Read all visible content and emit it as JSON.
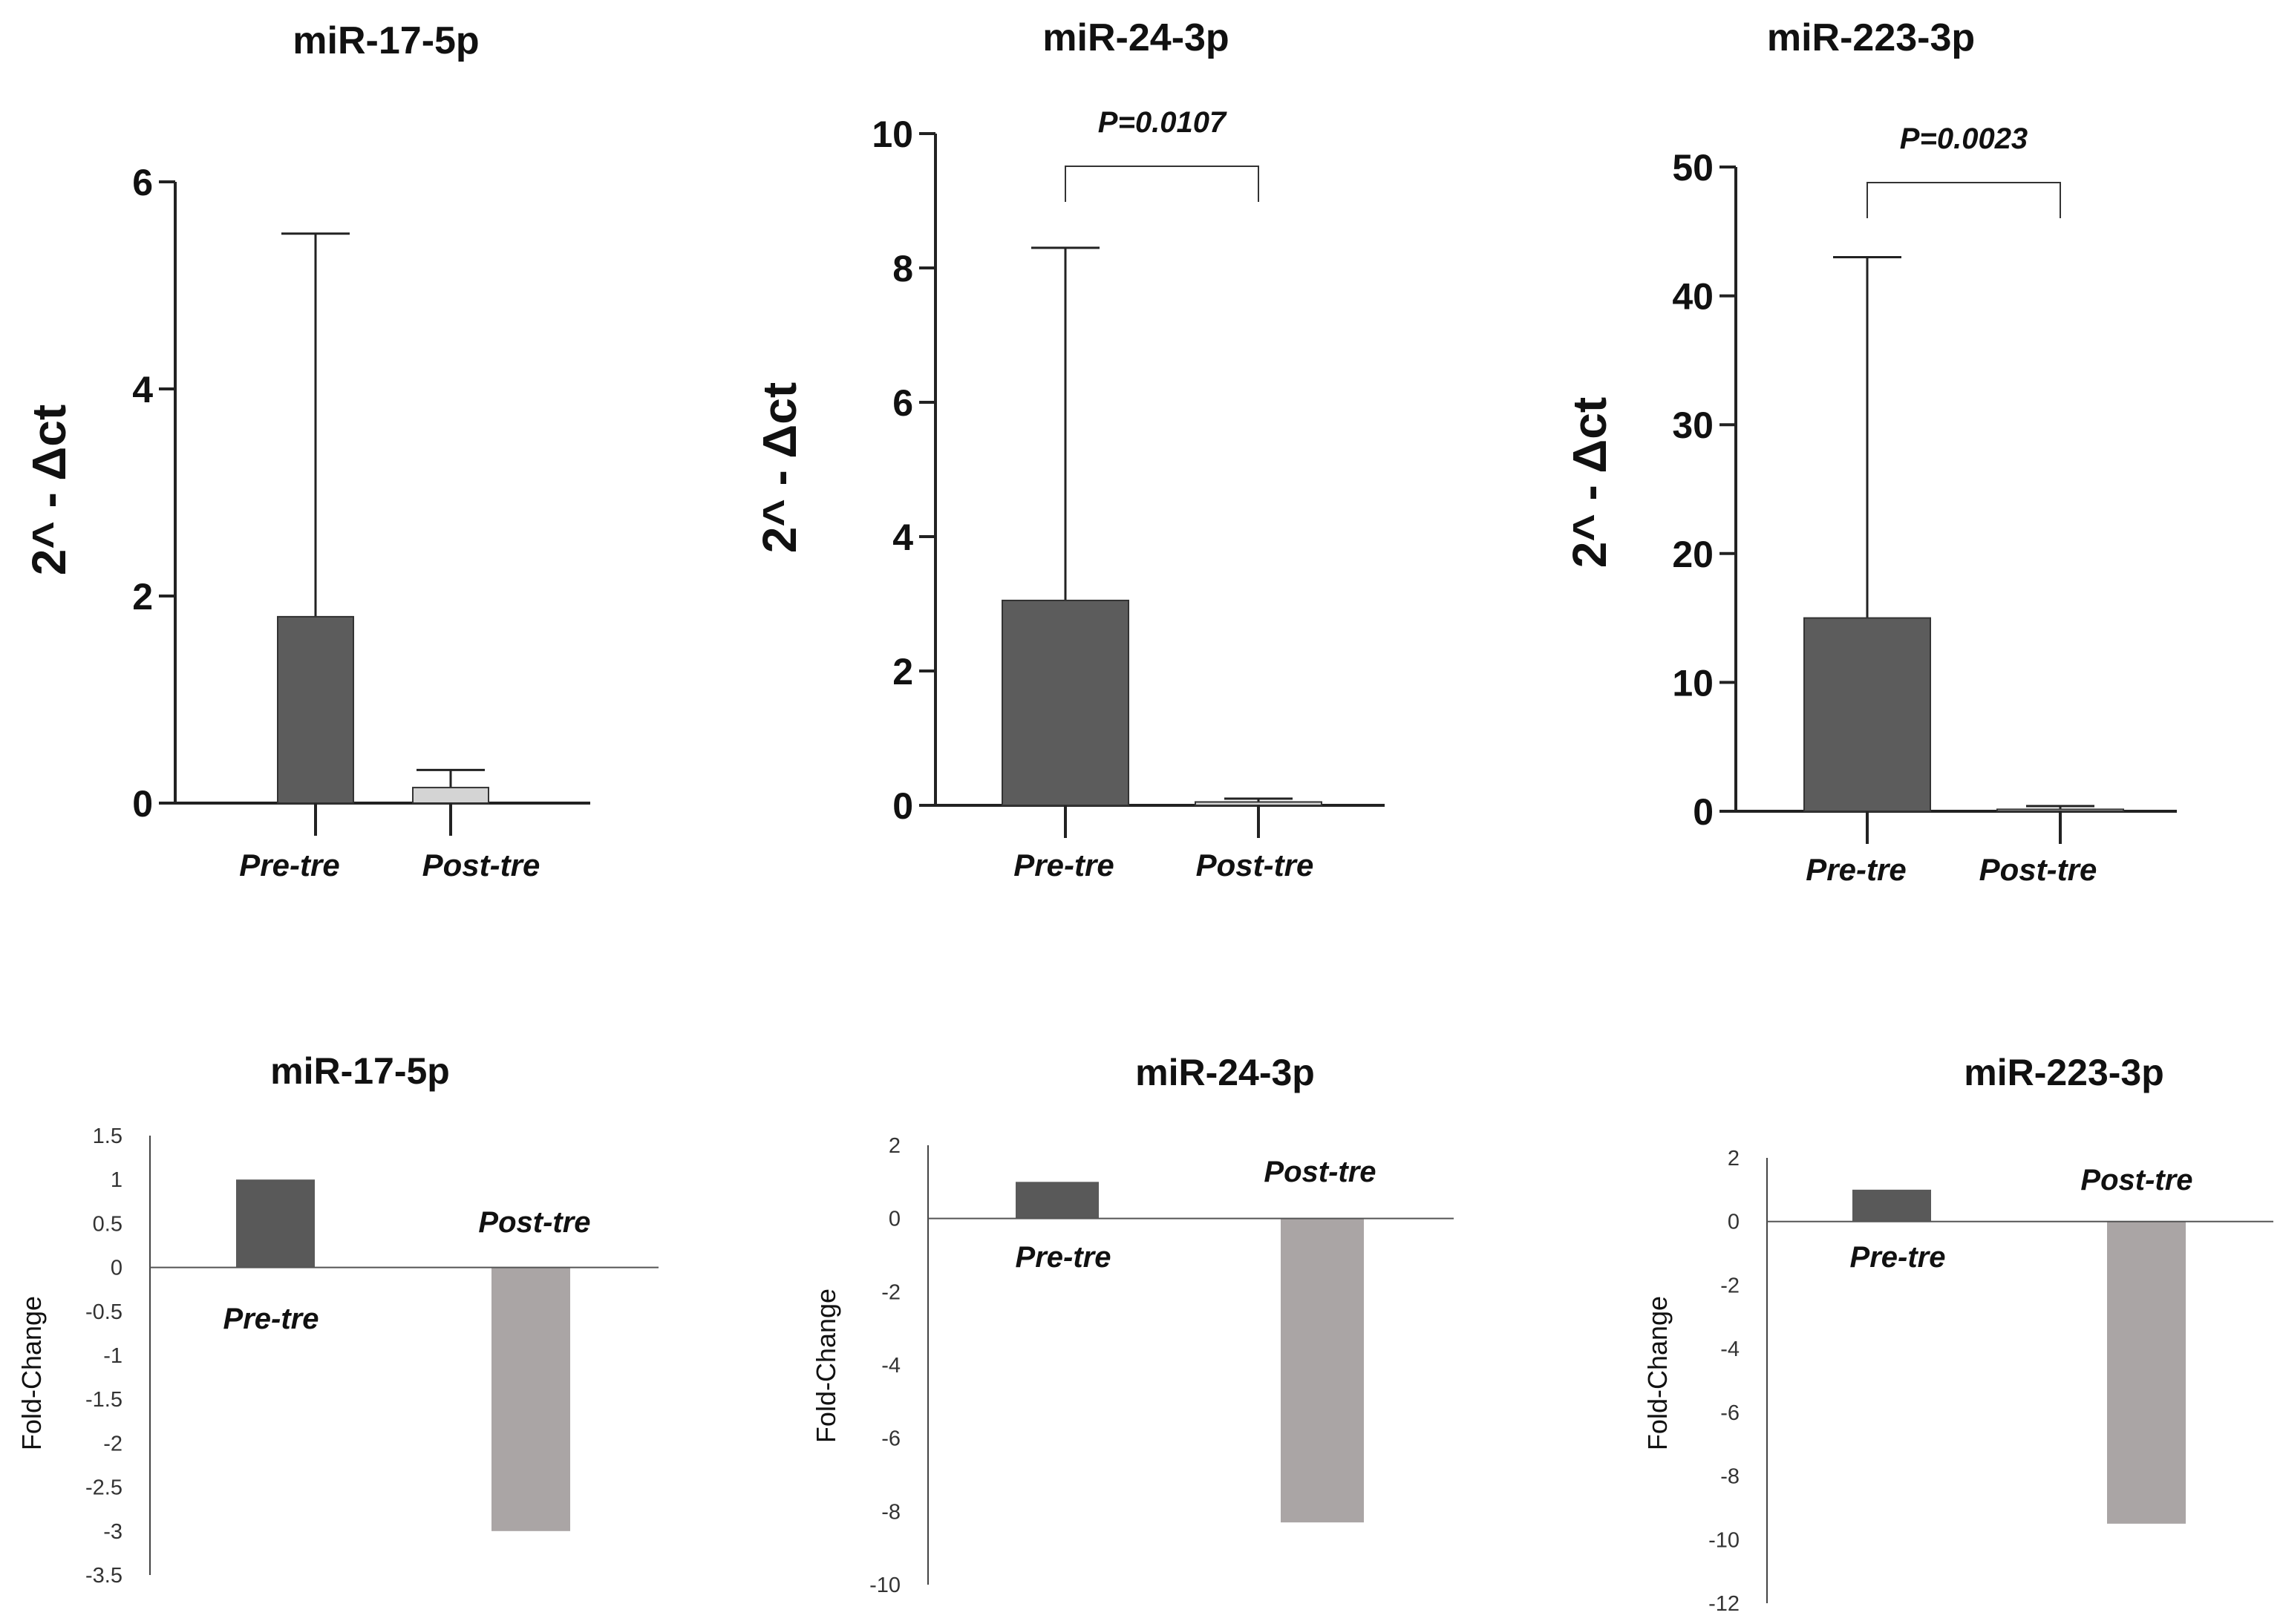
{
  "chart_data": [
    {
      "type": "bar",
      "title": "miR-17-5p",
      "ylabel": "2^ - Δct",
      "categories": [
        "Pre-tre",
        "Post-tre"
      ],
      "values": [
        1.8,
        0.15
      ],
      "error_upper": [
        5.5,
        0.32
      ],
      "ylim": [
        0,
        6
      ],
      "yticks": [
        0,
        2,
        4,
        6
      ],
      "colors": [
        "#5c5c5c",
        "#d4d4d4"
      ],
      "pvalue": ""
    },
    {
      "type": "bar",
      "title": "miR-24-3p",
      "ylabel": "2^ - Δct",
      "categories": [
        "Pre-tre",
        "Post-tre"
      ],
      "values": [
        3.05,
        0.05
      ],
      "error_upper": [
        8.3,
        0.1
      ],
      "ylim": [
        0,
        10
      ],
      "yticks": [
        0,
        2,
        4,
        6,
        8,
        10
      ],
      "colors": [
        "#5c5c5c",
        "#d4d4d4"
      ],
      "pvalue": "P=0.0107"
    },
    {
      "type": "bar",
      "title": "miR-223-3p",
      "ylabel": "2^ - Δct",
      "categories": [
        "Pre-tre",
        "Post-tre"
      ],
      "values": [
        15,
        0.15
      ],
      "error_upper": [
        43,
        0.4
      ],
      "ylim": [
        0,
        50
      ],
      "yticks": [
        0,
        10,
        20,
        30,
        40,
        50
      ],
      "colors": [
        "#5c5c5c",
        "#d4d4d4"
      ],
      "pvalue": "P=0.0023"
    },
    {
      "type": "bar",
      "title": "miR-17-5p",
      "ylabel": "Fold-Change",
      "categories": [
        "Pre-tre",
        "Post-tre"
      ],
      "values": [
        1,
        -3
      ],
      "ylim": [
        -3.5,
        1.5
      ],
      "yticks": [
        1.5,
        1,
        0.5,
        0,
        -0.5,
        -1,
        -1.5,
        -2,
        -2.5,
        -3,
        -3.5
      ],
      "colors": [
        "#595959",
        "#aaa5a5"
      ]
    },
    {
      "type": "bar",
      "title": "miR-24-3p",
      "ylabel": "Fold-Change",
      "categories": [
        "Pre-tre",
        "Post-tre"
      ],
      "values": [
        1,
        -8.3
      ],
      "ylim": [
        -10,
        2
      ],
      "yticks": [
        2,
        0,
        -2,
        -4,
        -6,
        -8,
        -10
      ],
      "colors": [
        "#595959",
        "#aaa5a5"
      ]
    },
    {
      "type": "bar",
      "title": "miR-223-3p",
      "ylabel": "Fold-Change",
      "categories": [
        "Pre-tre",
        "Post-tre"
      ],
      "values": [
        1,
        -9.5
      ],
      "ylim": [
        -12,
        2
      ],
      "yticks": [
        2,
        0,
        -2,
        -4,
        -6,
        -8,
        -10,
        -12
      ],
      "colors": [
        "#595959",
        "#aaa5a5"
      ]
    }
  ]
}
